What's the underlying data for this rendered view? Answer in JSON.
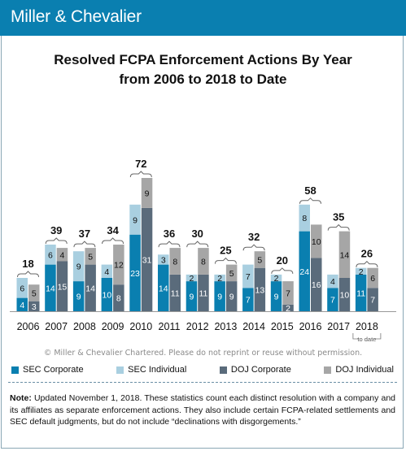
{
  "brand": "Miller & Chevalier",
  "copyright": "© Miller & Chevalier Chartered. Please do not reprint or reuse without permission.",
  "note": {
    "label": "Note:",
    "text": "Updated November 1, 2018. These statistics count each distinct resolution with a company and its affiliates as separate enforcement actions. They also include certain FCPA-related settlements and SEC default judgments, but do not include “declinations with disgorgements.”"
  },
  "colors": {
    "sec_corporate": "#0a7fb0",
    "sec_individual": "#a9cfe0",
    "doj_corporate": "#5a6b7b",
    "doj_individual": "#a6a6a6",
    "header": "#0a7fb0"
  },
  "chart_data": {
    "type": "bar",
    "title": [
      "Resolved FCPA Enforcement Actions By Year",
      "from 2006 to 2018 to Date"
    ],
    "categories": [
      "2006",
      "2007",
      "2008",
      "2009",
      "2010",
      "2011",
      "2012",
      "2013",
      "2014",
      "2015",
      "2016",
      "2017",
      "2018"
    ],
    "category_note": {
      "2018": "to date"
    },
    "groups": [
      {
        "name": "SEC",
        "stack": [
          "SEC Corporate",
          "SEC Individual"
        ]
      },
      {
        "name": "DOJ",
        "stack": [
          "DOJ Corporate",
          "DOJ Individual"
        ]
      }
    ],
    "series": [
      {
        "name": "SEC Corporate",
        "values": [
          4,
          14,
          9,
          10,
          23,
          14,
          9,
          9,
          7,
          9,
          24,
          7,
          11
        ]
      },
      {
        "name": "SEC Individual",
        "values": [
          6,
          6,
          9,
          4,
          9,
          3,
          2,
          2,
          7,
          2,
          8,
          4,
          2
        ]
      },
      {
        "name": "DOJ Corporate",
        "values": [
          3,
          15,
          14,
          8,
          31,
          11,
          11,
          9,
          13,
          2,
          16,
          10,
          7
        ]
      },
      {
        "name": "DOJ Individual",
        "values": [
          5,
          4,
          5,
          12,
          9,
          8,
          8,
          5,
          5,
          7,
          10,
          14,
          6
        ]
      }
    ],
    "totals": [
      18,
      39,
      37,
      34,
      72,
      36,
      30,
      25,
      32,
      20,
      58,
      35,
      26
    ],
    "legend_position": "bottom",
    "grid": false
  }
}
